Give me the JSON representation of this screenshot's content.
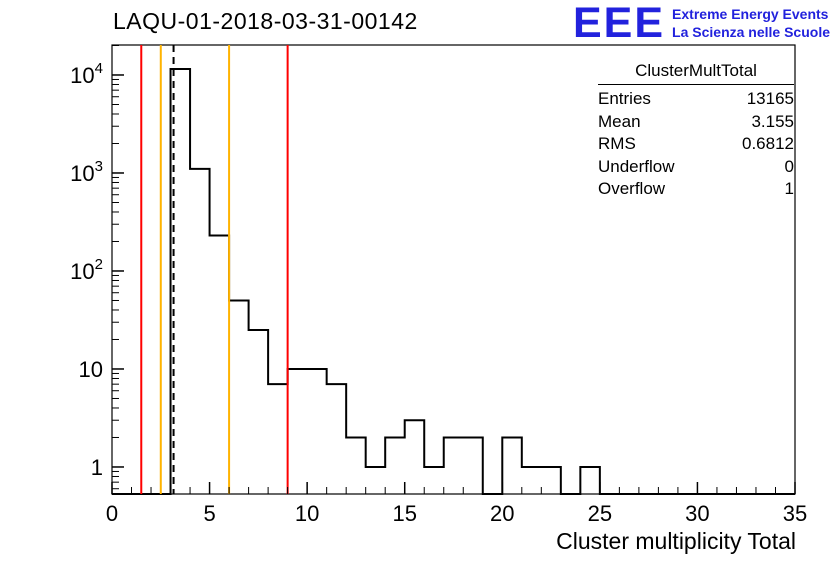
{
  "title": "LAQU-01-2018-03-31-00142",
  "logo": {
    "big": "EEE",
    "line1": "Extreme Energy Events",
    "line2": "La Scienza nelle Scuole",
    "color": "#2222dd"
  },
  "stats": {
    "header": "ClusterMultTotal",
    "rows": [
      {
        "label": "Entries",
        "value": "13165"
      },
      {
        "label": "Mean",
        "value": "3.155"
      },
      {
        "label": "RMS",
        "value": "0.6812"
      },
      {
        "label": "Underflow",
        "value": "0"
      },
      {
        "label": "Overflow",
        "value": "1"
      }
    ]
  },
  "colors": {
    "marker_red": "#ff0000",
    "marker_orange": "#ffb300",
    "hist_line": "#000000",
    "logo_blue": "#2222dd"
  },
  "chart_data": {
    "type": "bar",
    "subtype": "step-histogram-log-y",
    "title": "LAQU-01-2018-03-31-00142",
    "xlabel": "Cluster multiplicity Total",
    "ylabel": "",
    "xlim": [
      0,
      35
    ],
    "ylim": [
      0.53,
      20230
    ],
    "y_scale": "log",
    "bin_width": 1,
    "bin_start": 0,
    "counts": [
      0,
      0,
      0,
      11500,
      1100,
      230,
      50,
      25,
      7,
      10,
      10,
      7,
      2,
      1,
      2,
      3,
      1,
      2,
      2,
      0,
      2,
      1,
      1,
      0,
      1,
      0,
      0,
      0,
      0,
      0,
      0,
      0,
      0,
      0,
      0
    ],
    "x_ticks": [
      0,
      5,
      10,
      15,
      20,
      25,
      30,
      35
    ],
    "y_ticks": [
      {
        "v": 1,
        "label": "1"
      },
      {
        "v": 10,
        "label": "10"
      },
      {
        "v": 100,
        "label": "10^2"
      },
      {
        "v": 1000,
        "label": "10^3"
      },
      {
        "v": 10000,
        "label": "10^4"
      }
    ],
    "vlines": [
      {
        "x": 1.5,
        "color": "#ff0000",
        "style": "solid"
      },
      {
        "x": 2.5,
        "color": "#ffb300",
        "style": "solid"
      },
      {
        "x": 3.155,
        "color": "#000000",
        "style": "dashed"
      },
      {
        "x": 6.0,
        "color": "#ffb300",
        "style": "solid"
      },
      {
        "x": 9.0,
        "color": "#ff0000",
        "style": "solid"
      }
    ],
    "grid": false,
    "legend": false
  }
}
